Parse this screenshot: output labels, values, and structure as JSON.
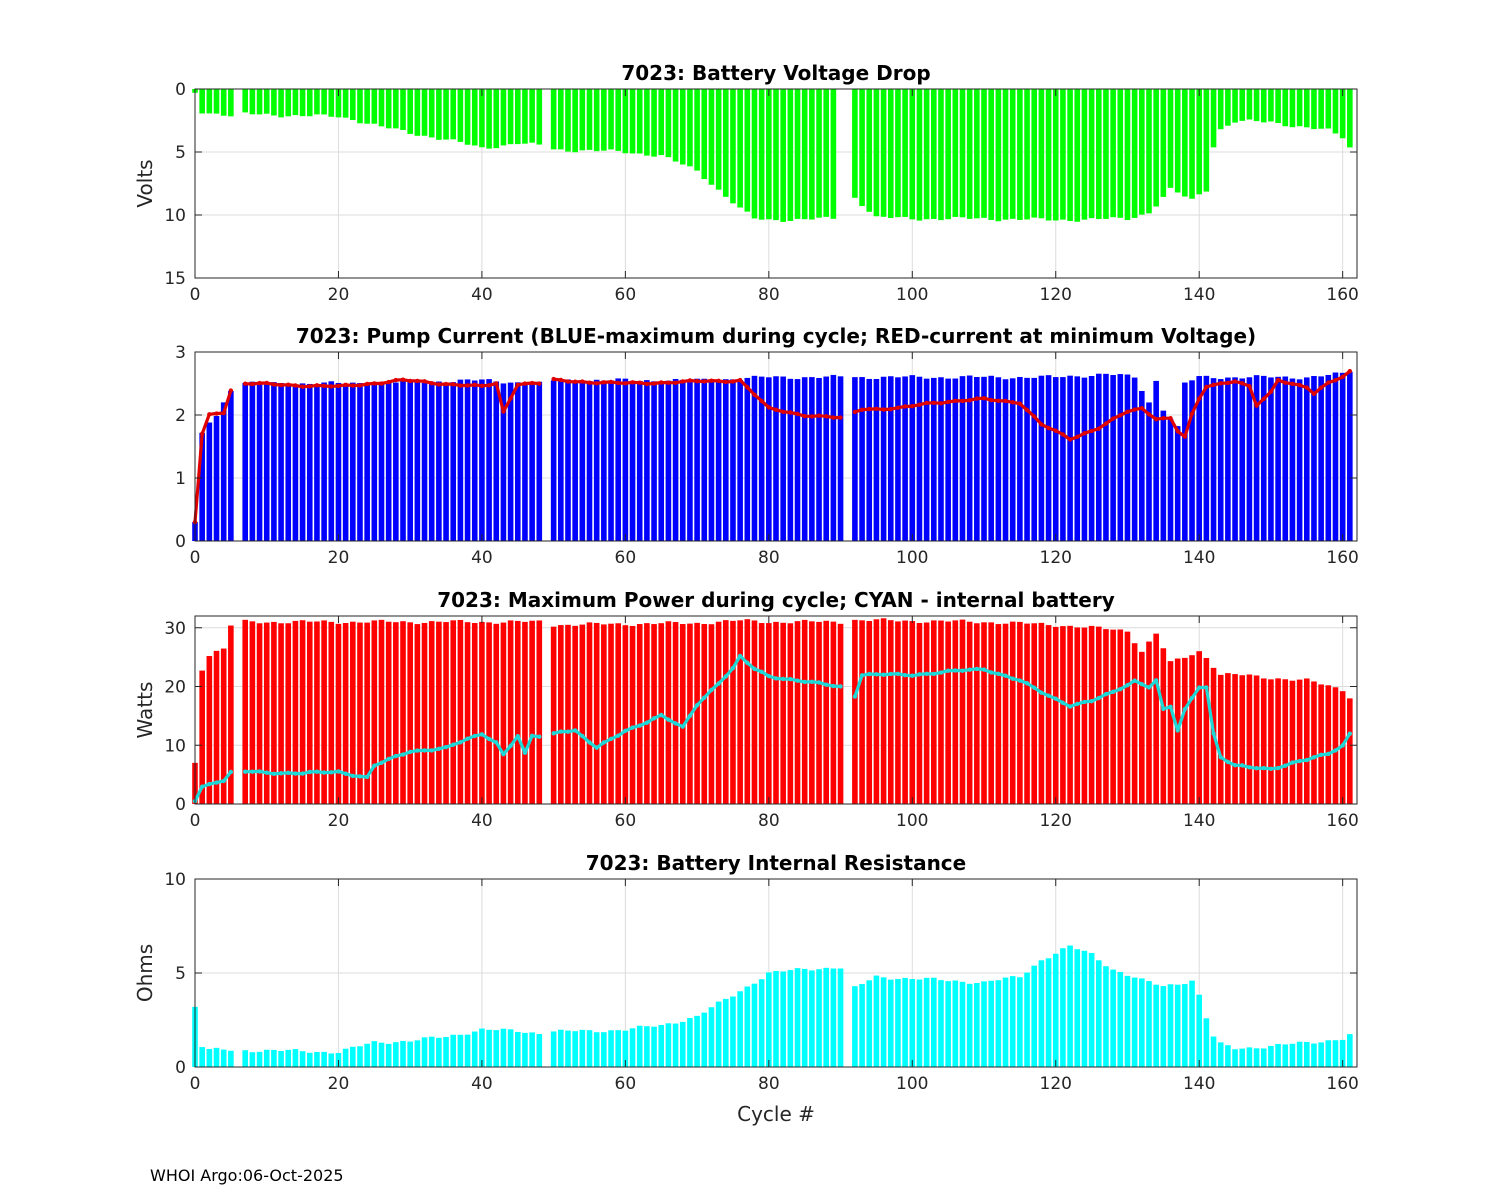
{
  "footer": "WHOI Argo:06-Oct-2025",
  "colors": {
    "green": "#00ff00",
    "blue": "#0000ff",
    "red": "#ff0000",
    "darkred": "#e00000",
    "cyan": "#00ffff",
    "cyanline": "#1ed8d8",
    "grid": "#dcdcdc",
    "axis": "#262626"
  },
  "chart_data": [
    {
      "type": "bar",
      "title": "7023: Battery Voltage Drop",
      "xlabel": "",
      "ylabel": "Volts",
      "xlim": [
        0,
        162
      ],
      "ylim": [
        0,
        15
      ],
      "y_reversed": true,
      "xticks": [
        0,
        20,
        40,
        60,
        80,
        100,
        120,
        140,
        160
      ],
      "yticks": [
        0,
        5,
        10,
        15
      ],
      "grid": true,
      "keyframes_x": [
        0,
        1,
        5,
        6,
        7,
        20,
        22,
        26,
        30,
        35,
        40,
        45,
        48,
        49,
        50,
        55,
        60,
        65,
        70,
        73,
        76,
        78,
        80,
        89,
        90,
        91,
        92,
        95,
        100,
        110,
        120,
        130,
        133,
        136,
        139,
        141,
        142,
        143,
        145,
        150,
        155,
        158,
        160,
        161
      ],
      "keyframes_y": [
        0.3,
        1.8,
        2.1,
        null,
        2.0,
        2.2,
        2.4,
        3.0,
        3.5,
        4.0,
        4.7,
        4.3,
        4.5,
        null,
        4.8,
        4.9,
        5.0,
        5.3,
        6.5,
        8.0,
        9.5,
        10.3,
        10.4,
        10.3,
        null,
        null,
        8.6,
        10.2,
        10.3,
        10.3,
        10.4,
        10.3,
        9.8,
        8.0,
        8.8,
        8.0,
        4.5,
        3.2,
        2.6,
        2.6,
        3.1,
        3.3,
        3.8,
        4.6
      ],
      "series": [
        {
          "name": "Voltage drop",
          "color": "green"
        }
      ]
    },
    {
      "type": "bar",
      "title": "7023: Pump Current (BLUE-maximum during cycle; RED-current at minimum Voltage)",
      "xlabel": "",
      "ylabel": "",
      "xlim": [
        0,
        162
      ],
      "ylim": [
        0,
        3
      ],
      "y_reversed": false,
      "xticks": [
        0,
        20,
        40,
        60,
        80,
        100,
        120,
        140,
        160
      ],
      "yticks": [
        0,
        1,
        2,
        3
      ],
      "grid": true,
      "bars_keyframes_x": [
        0,
        1,
        2,
        3,
        5,
        6,
        7,
        20,
        40,
        48,
        49,
        50,
        70,
        80,
        90,
        91,
        92,
        110,
        120,
        127,
        131,
        133,
        134,
        135,
        137,
        138,
        140,
        155,
        160,
        161
      ],
      "bars_keyframes_y": [
        0.3,
        1.7,
        1.9,
        2.0,
        2.4,
        null,
        2.5,
        2.5,
        2.55,
        2.5,
        null,
        2.55,
        2.55,
        2.6,
        2.6,
        null,
        2.6,
        2.6,
        2.6,
        2.65,
        2.6,
        2.2,
        2.55,
        2.1,
        1.8,
        2.5,
        2.6,
        2.6,
        2.65,
        2.7
      ],
      "line_keyframes_x": [
        0,
        1,
        2,
        4,
        5,
        6,
        7,
        20,
        29,
        40,
        42,
        43,
        45,
        48,
        49,
        50,
        60,
        76,
        80,
        85,
        90,
        91,
        92,
        93,
        98,
        103,
        110,
        115,
        118,
        122,
        126,
        130,
        132,
        134,
        136,
        137,
        138,
        139,
        140,
        141,
        145,
        147,
        148,
        150,
        151,
        155,
        156,
        158,
        160,
        161
      ],
      "line_keyframes_y": [
        0.3,
        1.7,
        2.0,
        2.05,
        2.4,
        null,
        2.5,
        2.45,
        2.55,
        2.45,
        2.5,
        2.05,
        2.5,
        2.5,
        null,
        2.55,
        2.5,
        2.55,
        2.1,
        2.0,
        1.95,
        null,
        2.05,
        2.1,
        2.1,
        2.2,
        2.25,
        2.2,
        1.85,
        1.62,
        1.8,
        2.05,
        2.1,
        1.95,
        1.95,
        1.75,
        1.65,
        2.0,
        2.25,
        2.45,
        2.55,
        2.45,
        2.15,
        2.35,
        2.55,
        2.45,
        2.35,
        2.5,
        2.6,
        2.68
      ],
      "series": [
        {
          "name": "maximum during cycle",
          "color": "blue"
        },
        {
          "name": "current at minimum Voltage",
          "color": "red"
        }
      ]
    },
    {
      "type": "bar",
      "title": "7023: Maximum Power during cycle; CYAN - internal battery",
      "xlabel": "",
      "ylabel": "Watts",
      "xlim": [
        0,
        162
      ],
      "ylim": [
        0,
        32
      ],
      "y_reversed": false,
      "xticks": [
        0,
        20,
        40,
        60,
        80,
        100,
        120,
        140,
        160
      ],
      "yticks": [
        0,
        10,
        20,
        30
      ],
      "grid": true,
      "bars_keyframes_x": [
        0,
        1,
        2,
        3,
        4,
        5,
        6,
        7,
        20,
        40,
        48,
        49,
        50,
        70,
        76,
        80,
        90,
        91,
        92,
        110,
        120,
        130,
        132,
        134,
        136,
        138,
        140,
        141,
        143,
        145,
        150,
        155,
        160,
        161
      ],
      "bars_keyframes_y": [
        7.0,
        23.0,
        25.5,
        26.0,
        26.3,
        30.4,
        null,
        31.0,
        31.0,
        31.0,
        31.0,
        null,
        30.5,
        30.8,
        31.2,
        31.0,
        31.0,
        null,
        31.3,
        31.0,
        30.5,
        29.5,
        26.0,
        29.0,
        24.0,
        25.0,
        26.0,
        25.0,
        22.0,
        22.0,
        21.5,
        21.0,
        19.5,
        18.3
      ],
      "line_keyframes_x": [
        0,
        1,
        3,
        4,
        5,
        6,
        7,
        15,
        20,
        24,
        25,
        30,
        35,
        40,
        42,
        43,
        45,
        46,
        47,
        48,
        49,
        50,
        51,
        53,
        56,
        60,
        65,
        68,
        70,
        75,
        76,
        78,
        80,
        85,
        90,
        91,
        92,
        93,
        100,
        110,
        115,
        118,
        122,
        125,
        128,
        131,
        133,
        134,
        135,
        136,
        137,
        138,
        140,
        141,
        142,
        143,
        145,
        147,
        150,
        153,
        155,
        158,
        160,
        161
      ],
      "line_keyframes_y": [
        0.5,
        3.0,
        3.8,
        4.0,
        5.3,
        null,
        5.5,
        5.2,
        5.5,
        4.5,
        6.5,
        9.0,
        9.5,
        12.0,
        10.5,
        8.5,
        11.5,
        8.5,
        11.5,
        11.5,
        null,
        12.0,
        12.5,
        12.5,
        9.5,
        12.5,
        15.0,
        13.0,
        17.0,
        23.0,
        25.0,
        23.0,
        21.8,
        20.8,
        20.0,
        null,
        18.5,
        22.0,
        22.0,
        23.0,
        21.0,
        19.0,
        16.8,
        17.5,
        19.0,
        21.0,
        20.0,
        21.0,
        16.0,
        16.5,
        12.5,
        16.0,
        20.0,
        20.0,
        12.0,
        8.0,
        6.5,
        6.2,
        6.0,
        7.0,
        7.5,
        8.5,
        10.0,
        12.0
      ],
      "series": [
        {
          "name": "Maximum Power",
          "color": "red"
        },
        {
          "name": "internal battery",
          "color": "cyan"
        }
      ]
    },
    {
      "type": "bar",
      "title": "7023: Battery Internal Resistance",
      "xlabel": "Cycle #",
      "ylabel": "Ohms",
      "xlim": [
        0,
        162
      ],
      "ylim": [
        0,
        10
      ],
      "y_reversed": false,
      "xticks": [
        0,
        20,
        40,
        60,
        80,
        100,
        120,
        140,
        160
      ],
      "yticks": [
        0,
        5,
        10
      ],
      "grid": true,
      "keyframes_x": [
        0,
        1,
        2,
        5,
        6,
        7,
        20,
        22,
        25,
        30,
        35,
        40,
        45,
        48,
        49,
        50,
        55,
        60,
        65,
        70,
        75,
        80,
        85,
        89,
        90,
        91,
        92,
        95,
        100,
        110,
        115,
        118,
        122,
        125,
        128,
        132,
        135,
        139,
        140,
        141,
        142,
        143,
        145,
        150,
        155,
        160,
        161
      ],
      "keyframes_y": [
        3.2,
        1.1,
        0.9,
        0.9,
        null,
        0.9,
        0.8,
        1.0,
        1.3,
        1.4,
        1.6,
        2.0,
        1.9,
        1.8,
        null,
        1.9,
        1.9,
        2.0,
        2.2,
        2.7,
        3.8,
        5.0,
        5.2,
        5.3,
        5.3,
        null,
        4.2,
        4.8,
        4.7,
        4.5,
        4.8,
        5.7,
        6.4,
        6.0,
        5.2,
        4.6,
        4.3,
        4.6,
        3.8,
        2.6,
        1.6,
        1.2,
        1.0,
        1.1,
        1.3,
        1.5,
        1.7
      ],
      "series": [
        {
          "name": "Internal Resistance",
          "color": "cyan"
        }
      ]
    }
  ]
}
